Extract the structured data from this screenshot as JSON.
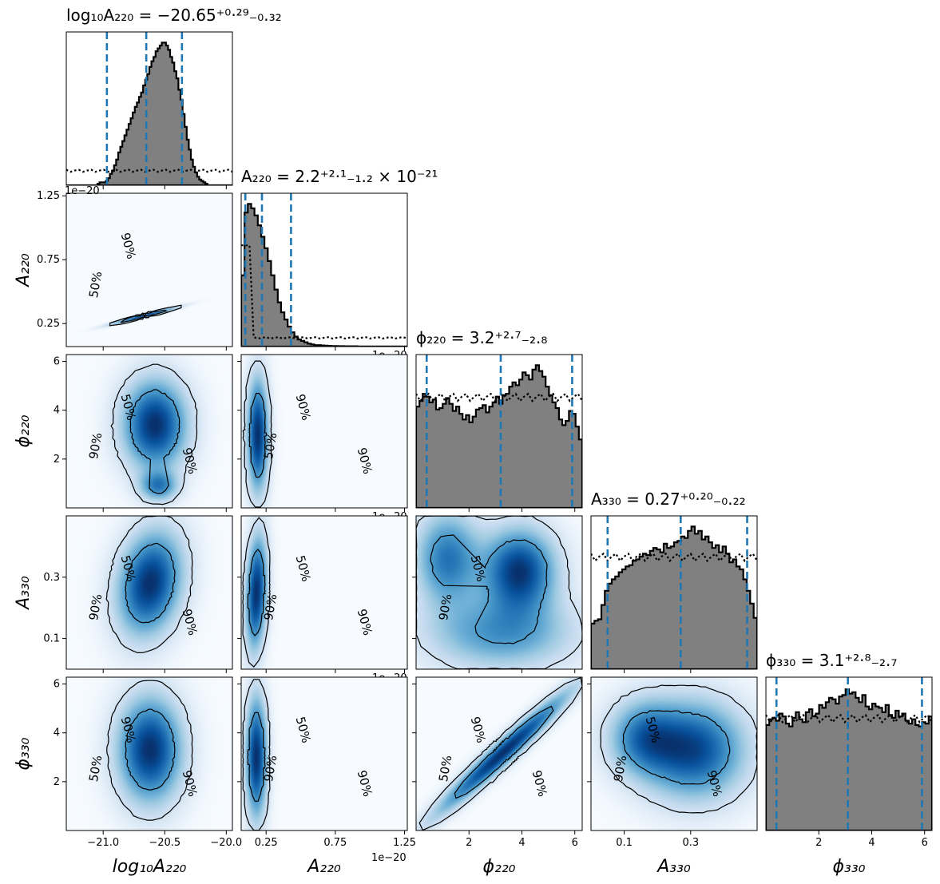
{
  "chart_data": {
    "type": "corner",
    "parameters": [
      "log10A220",
      "A220",
      "phi220",
      "A330",
      "phi330"
    ],
    "axis_labels": {
      "log10A220": "log₁₀A₂₂₀",
      "A220": "A₂₂₀",
      "phi220": "ϕ₂₂₀",
      "A330": "A₃₃₀",
      "phi330": "ϕ₃₃₀"
    },
    "titles": {
      "log10A220": "log₁₀A₂₂₀ = −20.65⁺⁰·²⁹₋₀.₃₂",
      "A220": "A₂₂₀ = 2.2⁺²·¹₋₁.₂ × 10⁻²¹",
      "phi220": "ϕ₂₂₀ = 3.2⁺²·⁷₋₂.₈",
      "A330": "A₃₃₀ = 0.27⁺⁰·²⁰₋₀.₂₂",
      "phi330": "ϕ₃₃₀ = 3.1⁺²·⁸₋₂.₇"
    },
    "ranges": {
      "log10A220": [
        -21.3,
        -19.95
      ],
      "A220": [
        0.07,
        1.27
      ],
      "phi220": [
        0.0,
        6.28
      ],
      "A330": [
        0.0,
        0.5
      ],
      "phi330": [
        0.0,
        6.28
      ]
    },
    "ticks": {
      "log10A220": {
        "values": [
          -21.0,
          -20.5,
          -20.0
        ],
        "labels": [
          "−21.0",
          "−20.5",
          "−20.0"
        ]
      },
      "A220": {
        "values": [
          0.25,
          0.75,
          1.25
        ],
        "labels": [
          "0.25",
          "0.75",
          "1.25"
        ],
        "offset": "1e−20"
      },
      "phi220": {
        "values": [
          2,
          4,
          6
        ],
        "labels": [
          "2",
          "4",
          "6"
        ]
      },
      "A330": {
        "values": [
          0.1,
          0.3
        ],
        "labels": [
          "0.1",
          "0.3"
        ]
      },
      "phi330": {
        "values": [
          2,
          4,
          6
        ],
        "labels": [
          "2",
          "4",
          "6"
        ]
      }
    },
    "quantiles": {
      "log10A220": [
        -20.97,
        -20.65,
        -20.36
      ],
      "A220": [
        0.1,
        0.22,
        0.43
      ],
      "phi220": [
        0.4,
        3.2,
        5.9
      ],
      "A330": [
        0.05,
        0.27,
        0.47
      ],
      "phi330": [
        0.4,
        3.1,
        5.9
      ]
    },
    "histograms": {
      "log10A220": [
        0,
        0,
        0,
        0,
        0,
        0,
        0,
        0,
        0,
        0,
        0,
        0,
        0,
        0,
        0,
        0.01,
        0.02,
        0.02,
        0.02,
        0.03,
        0.05,
        0.08,
        0.1,
        0.14,
        0.18,
        0.23,
        0.27,
        0.31,
        0.35,
        0.39,
        0.43,
        0.47,
        0.51,
        0.55,
        0.58,
        0.62,
        0.65,
        0.7,
        0.74,
        0.78,
        0.83,
        0.87,
        0.9,
        0.94,
        0.96,
        0.98,
        1,
        1,
        0.98,
        0.95,
        0.9,
        0.86,
        0.8,
        0.75,
        0.67,
        0.6,
        0.5,
        0.41,
        0.32,
        0.25,
        0.18,
        0.13,
        0.09,
        0.06,
        0.04,
        0.03,
        0.02,
        0.01,
        0,
        0,
        0,
        0,
        0,
        0,
        0,
        0,
        0,
        0,
        0,
        0
      ],
      "A220": [
        0.5,
        0.94,
        1,
        0.97,
        0.92,
        0.85,
        0.77,
        0.69,
        0.6,
        0.5,
        0.4,
        0.31,
        0.24,
        0.19,
        0.14,
        0.1,
        0.07,
        0.05,
        0.04,
        0.03,
        0.02,
        0.015,
        0.01,
        0.01,
        0.008,
        0.006,
        0.005,
        0.004,
        0.004,
        0.003,
        0.003,
        0.002,
        0.002,
        0.002,
        0.002,
        0.001,
        0.001,
        0.001,
        0.001,
        0.001,
        0.001,
        0.001,
        0.001,
        0.001,
        0.001,
        0.001,
        0.001,
        0.001,
        0.001,
        0.001
      ],
      "phi220": [
        0.71,
        0.75,
        0.8,
        0.78,
        0.74,
        0.76,
        0.69,
        0.7,
        0.73,
        0.77,
        0.73,
        0.68,
        0.71,
        0.66,
        0.62,
        0.65,
        0.6,
        0.64,
        0.69,
        0.7,
        0.72,
        0.67,
        0.71,
        0.74,
        0.78,
        0.73,
        0.79,
        0.8,
        0.85,
        0.88,
        0.86,
        0.9,
        0.95,
        0.93,
        0.9,
        0.97,
        1,
        0.96,
        0.92,
        0.85,
        0.79,
        0.74,
        0.7,
        0.62,
        0.58,
        0.61,
        0.68,
        0.66,
        0.57,
        0.48
      ],
      "A330": [
        0.32,
        0.34,
        0.35,
        0.45,
        0.55,
        0.6,
        0.63,
        0.65,
        0.68,
        0.7,
        0.72,
        0.73,
        0.76,
        0.77,
        0.79,
        0.81,
        0.8,
        0.83,
        0.85,
        0.84,
        0.82,
        0.88,
        0.85,
        0.86,
        0.89,
        0.9,
        0.93,
        0.92,
        0.97,
        1,
        0.95,
        0.97,
        0.91,
        0.93,
        0.89,
        0.85,
        0.87,
        0.82,
        0.86,
        0.81,
        0.75,
        0.77,
        0.72,
        0.7,
        0.63,
        0.55,
        0.46,
        0.36
      ],
      "phi330": [
        0.74,
        0.78,
        0.79,
        0.77,
        0.82,
        0.8,
        0.75,
        0.73,
        0.79,
        0.83,
        0.78,
        0.76,
        0.83,
        0.85,
        0.8,
        0.82,
        0.88,
        0.86,
        0.9,
        0.93,
        0.92,
        0.89,
        0.94,
        0.95,
        0.99,
        0.96,
        0.97,
        0.93,
        0.9,
        0.95,
        0.87,
        0.85,
        0.89,
        0.87,
        0.86,
        0.83,
        0.88,
        0.81,
        0.79,
        0.84,
        0.8,
        0.82,
        0.77,
        0.75,
        0.78,
        0.74,
        0.73,
        0.76,
        0.75,
        0.8
      ]
    },
    "prior_levels": {
      "log10A220": 0.1,
      "A220": 0.06,
      "phi220": 0.77,
      "A330": 0.78,
      "phi330": 0.78
    },
    "contour_levels": [
      "50%",
      "90%"
    ],
    "density_cmap": "Blues",
    "colors": {
      "histogram_fill": "#808080",
      "quantile_line": "#1f77b4",
      "density_high": "#08306b",
      "density_mid": "#2171b5",
      "density_low": "#c6dbef",
      "background": "#f7fbff"
    },
    "pairs": [
      {
        "x": "log10A220",
        "y": "A220",
        "blobs": [
          {
            "cx": -20.67,
            "cy": 0.31,
            "sx": 0.16,
            "sy": 0.04,
            "w": 1.0,
            "corr": 0.97
          }
        ],
        "contour_labels": [
          {
            "text": "90%"
          },
          {
            "text": "50%"
          }
        ]
      },
      {
        "x": "log10A220",
        "y": "phi220",
        "blobs": [
          {
            "cx": -20.58,
            "cy": 3.4,
            "sx": 0.17,
            "sy": 1.2,
            "w": 1.0,
            "corr": 0
          },
          {
            "cx": -20.55,
            "cy": 0.9,
            "sx": 0.1,
            "sy": 0.4,
            "w": 0.6,
            "corr": 0
          }
        ],
        "contour_labels": [
          {
            "text": "50%"
          },
          {
            "text": "90%"
          },
          {
            "text": "90%"
          }
        ]
      },
      {
        "x": "A220",
        "y": "phi220",
        "blobs": [
          {
            "cx": 0.19,
            "cy": 3.0,
            "sx": 0.05,
            "sy": 1.5,
            "w": 1.0,
            "corr": 0
          }
        ],
        "contour_labels": [
          {
            "text": "90%"
          },
          {
            "text": "50%"
          },
          {
            "text": "90%"
          }
        ]
      },
      {
        "x": "log10A220",
        "y": "A330",
        "blobs": [
          {
            "cx": -20.62,
            "cy": 0.28,
            "sx": 0.17,
            "sy": 0.11,
            "w": 1.0,
            "corr": 0.2
          }
        ],
        "contour_labels": [
          {
            "text": "50%"
          },
          {
            "text": "90%"
          },
          {
            "text": "90%"
          }
        ]
      },
      {
        "x": "A220",
        "y": "A330",
        "blobs": [
          {
            "cx": 0.18,
            "cy": 0.25,
            "sx": 0.05,
            "sy": 0.12,
            "w": 1.0,
            "corr": 0.2
          }
        ],
        "contour_labels": [
          {
            "text": "50%"
          },
          {
            "text": "90%"
          },
          {
            "text": "90%"
          }
        ]
      },
      {
        "x": "phi220",
        "y": "A330",
        "blobs": [
          {
            "cx": 3.9,
            "cy": 0.32,
            "sx": 0.9,
            "sy": 0.09,
            "w": 1.0,
            "corr": 0
          },
          {
            "cx": 1.2,
            "cy": 0.36,
            "sx": 0.8,
            "sy": 0.1,
            "w": 0.7,
            "corr": 0
          },
          {
            "cx": 3.2,
            "cy": 0.12,
            "sx": 1.8,
            "sy": 0.08,
            "w": 0.55,
            "corr": 0
          }
        ],
        "contour_labels": [
          {
            "text": "50%"
          },
          {
            "text": "90%"
          }
        ]
      },
      {
        "x": "log10A220",
        "y": "phi330",
        "blobs": [
          {
            "cx": -20.62,
            "cy": 3.3,
            "sx": 0.17,
            "sy": 1.4,
            "w": 1.0,
            "corr": 0
          }
        ],
        "contour_labels": [
          {
            "text": "90%"
          },
          {
            "text": "50%"
          },
          {
            "text": "90%"
          }
        ]
      },
      {
        "x": "A220",
        "y": "phi330",
        "blobs": [
          {
            "cx": 0.18,
            "cy": 3.0,
            "sx": 0.05,
            "sy": 1.6,
            "w": 1.0,
            "corr": 0
          }
        ],
        "contour_labels": [
          {
            "text": "50%"
          },
          {
            "text": "90%"
          },
          {
            "text": "90%"
          }
        ]
      },
      {
        "x": "phi220",
        "y": "phi330",
        "blobs": [
          {
            "cx": 3.3,
            "cy": 3.2,
            "sx": 1.6,
            "sy": 1.6,
            "w": 1.0,
            "corr": 0.97
          }
        ],
        "contour_labels": [
          {
            "text": "90%"
          },
          {
            "text": "50%"
          },
          {
            "text": "90%"
          }
        ]
      },
      {
        "x": "A330",
        "y": "phi330",
        "blobs": [
          {
            "cx": 0.31,
            "cy": 3.3,
            "sx": 0.1,
            "sy": 1.3,
            "w": 1.0,
            "corr": 0
          },
          {
            "cx": 0.16,
            "cy": 3.8,
            "sx": 0.07,
            "sy": 1.0,
            "w": 0.7,
            "corr": 0
          }
        ],
        "contour_labels": [
          {
            "text": "50%"
          },
          {
            "text": "90%"
          },
          {
            "text": "90%"
          }
        ]
      }
    ]
  }
}
